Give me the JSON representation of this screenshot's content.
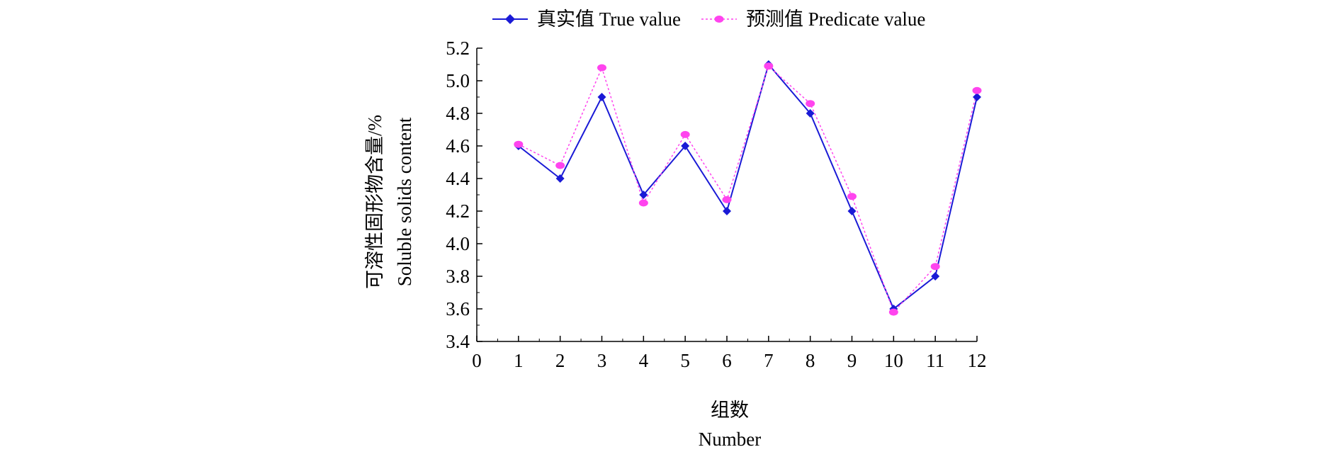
{
  "chart_data": {
    "type": "line",
    "xlabel_cn": "组数",
    "xlabel_en": "Number",
    "ylabel_cn": "可溶性固形物含量/%",
    "ylabel_en": "Soluble solids content",
    "xlim": [
      0,
      12
    ],
    "ylim": [
      3.4,
      5.2
    ],
    "x_ticks": [
      "0",
      "1",
      "2",
      "3",
      "4",
      "5",
      "6",
      "7",
      "8",
      "9",
      "10",
      "11",
      "12"
    ],
    "y_ticks": [
      "3.4",
      "3.6",
      "3.8",
      "4.0",
      "4.2",
      "4.4",
      "4.6",
      "4.8",
      "5.0",
      "5.2"
    ],
    "x": [
      1,
      2,
      3,
      4,
      5,
      6,
      7,
      8,
      9,
      10,
      11,
      12
    ],
    "grid": false,
    "legend_position": "top-center",
    "series": [
      {
        "name": "真实值 True value",
        "color": "#1a1ad6",
        "marker": "diamond",
        "line_style": "solid",
        "values": [
          4.6,
          4.4,
          4.9,
          4.3,
          4.6,
          4.2,
          5.1,
          4.8,
          4.2,
          3.6,
          3.8,
          4.9
        ]
      },
      {
        "name": "预测值 Predicate value",
        "color": "#ff44ee",
        "marker": "circle",
        "line_style": "dotted",
        "values": [
          4.61,
          4.48,
          5.08,
          4.25,
          4.67,
          4.27,
          5.09,
          4.86,
          4.29,
          3.58,
          3.86,
          4.94
        ]
      }
    ]
  }
}
